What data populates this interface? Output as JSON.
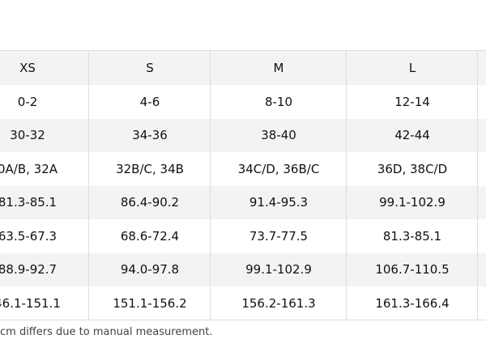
{
  "table": {
    "header": [
      "XS",
      "S",
      "M",
      "L"
    ],
    "rows": [
      [
        "0-2",
        "4-6",
        "8-10",
        "12-14"
      ],
      [
        "30-32",
        "34-36",
        "38-40",
        "42-44"
      ],
      [
        "0A/B, 32A",
        "32B/C, 34B",
        "34C/D, 36B/C",
        "36D, 38C/D"
      ],
      [
        "81.3-85.1",
        "86.4-90.2",
        "91.4-95.3",
        "99.1-102.9"
      ],
      [
        "63.5-67.3",
        "68.6-72.4",
        "73.7-77.5",
        "81.3-85.1"
      ],
      [
        "88.9-92.7",
        "94.0-97.8",
        "99.1-102.9",
        "106.7-110.5"
      ],
      [
        "46.1-151.1",
        "151.1-156.2",
        "156.2-161.3",
        "161.3-166.4"
      ]
    ]
  },
  "footnote": "cm differs due to manual measurement."
}
